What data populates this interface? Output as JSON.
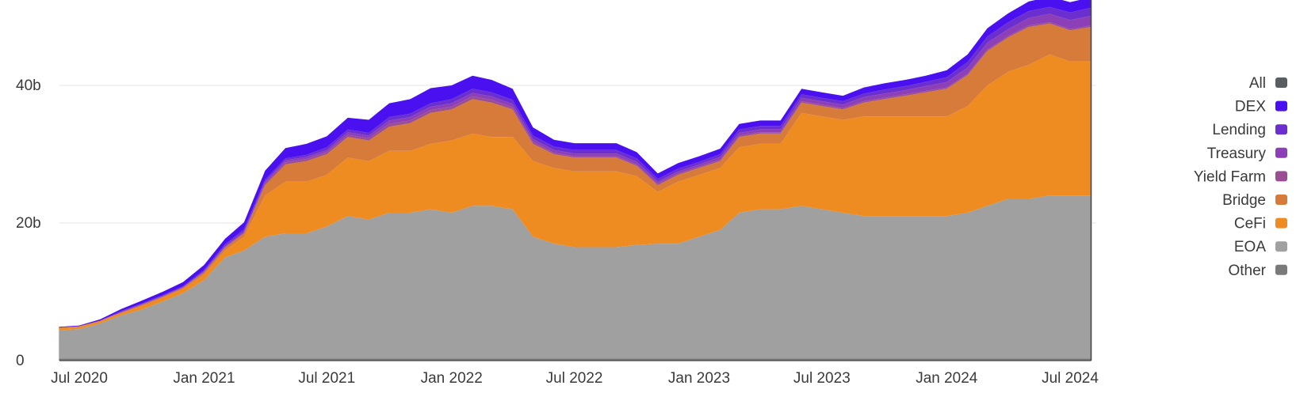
{
  "chart_data": {
    "type": "area",
    "stacked": true,
    "title": "",
    "xlabel": "",
    "ylabel": "",
    "x_ticks": [
      "Jul 2020",
      "Jan 2021",
      "Jul 2021",
      "Jan 2022",
      "Jul 2022",
      "Jan 2023",
      "Jul 2023",
      "Jan 2024",
      "Jul 2024"
    ],
    "y_ticks": [
      "0",
      "20b",
      "40b"
    ],
    "y_tick_values": [
      0,
      20,
      40
    ],
    "ylim": [
      0,
      52
    ],
    "xlim": [
      "2020-06-01",
      "2024-08-01"
    ],
    "grid": "horizontal",
    "legend_position": "right",
    "x": [
      "2020-06-01",
      "2020-07-01",
      "2020-08-01",
      "2020-09-01",
      "2020-10-01",
      "2020-11-01",
      "2020-12-01",
      "2021-01-01",
      "2021-02-01",
      "2021-03-01",
      "2021-04-01",
      "2021-05-01",
      "2021-06-01",
      "2021-07-01",
      "2021-08-01",
      "2021-09-01",
      "2021-10-01",
      "2021-11-01",
      "2021-12-01",
      "2022-01-01",
      "2022-02-01",
      "2022-03-01",
      "2022-04-01",
      "2022-05-01",
      "2022-06-01",
      "2022-07-01",
      "2022-08-01",
      "2022-09-01",
      "2022-10-01",
      "2022-11-01",
      "2022-12-01",
      "2023-01-01",
      "2023-02-01",
      "2023-03-01",
      "2023-04-01",
      "2023-05-01",
      "2023-06-01",
      "2023-07-01",
      "2023-08-01",
      "2023-09-01",
      "2023-10-01",
      "2023-11-01",
      "2023-12-01",
      "2024-01-01",
      "2024-02-01",
      "2024-03-01",
      "2024-04-01",
      "2024-05-01",
      "2024-06-01",
      "2024-07-01",
      "2024-08-01"
    ],
    "series": [
      {
        "name": "Other",
        "color": "#7a7a7a",
        "values": [
          0.3,
          0.3,
          0.3,
          0.3,
          0.3,
          0.3,
          0.3,
          0.3,
          0.3,
          0.3,
          0.3,
          0.3,
          0.3,
          0.3,
          0.3,
          0.3,
          0.3,
          0.3,
          0.3,
          0.3,
          0.3,
          0.3,
          0.3,
          0.3,
          0.3,
          0.3,
          0.3,
          0.3,
          0.3,
          0.3,
          0.3,
          0.3,
          0.3,
          0.3,
          0.3,
          0.3,
          0.3,
          0.3,
          0.3,
          0.3,
          0.3,
          0.3,
          0.3,
          0.3,
          0.3,
          0.3,
          0.3,
          0.3,
          0.3,
          0.3,
          0.3
        ]
      },
      {
        "name": "EOA",
        "color": "#a0a0a0",
        "values": [
          4.1,
          4.3,
          5.1,
          6.3,
          7.1,
          8.3,
          9.5,
          11.4,
          14.7,
          15.7,
          17.7,
          18.2,
          18.2,
          19.2,
          20.7,
          20.2,
          21.2,
          21.2,
          21.7,
          21.2,
          22.2,
          22.2,
          21.7,
          17.7,
          16.7,
          16.2,
          16.2,
          16.2,
          16.5,
          16.7,
          16.7,
          17.7,
          18.7,
          21.2,
          21.7,
          21.7,
          22.2,
          21.7,
          21.2,
          20.7,
          20.7,
          20.7,
          20.7,
          20.7,
          21.2,
          22.2,
          23.2,
          23.2,
          23.7,
          23.7,
          23.7
        ]
      },
      {
        "name": "CeFi",
        "color": "#ee8c22",
        "values": [
          0.3,
          0.3,
          0.3,
          0.3,
          0.5,
          0.5,
          0.6,
          0.8,
          1.0,
          2.0,
          6.0,
          7.5,
          7.5,
          7.5,
          8.5,
          8.5,
          9.0,
          9.0,
          9.5,
          10.5,
          10.5,
          10.0,
          10.5,
          11.0,
          11.0,
          11.0,
          11.0,
          11.0,
          10.0,
          7.5,
          9.0,
          9.0,
          9.0,
          9.5,
          9.5,
          9.5,
          13.5,
          13.5,
          13.5,
          14.5,
          14.5,
          14.5,
          14.5,
          14.5,
          15.5,
          17.5,
          18.5,
          19.5,
          20.5,
          19.5,
          19.5
        ]
      },
      {
        "name": "Bridge",
        "color": "#d67b3a",
        "values": [
          0.1,
          0.1,
          0.1,
          0.1,
          0.2,
          0.2,
          0.2,
          0.3,
          0.4,
          0.5,
          1.5,
          2.5,
          3.0,
          3.0,
          3.0,
          3.0,
          3.5,
          4.0,
          4.5,
          4.5,
          5.0,
          5.0,
          4.0,
          2.5,
          2.0,
          2.0,
          2.0,
          2.0,
          1.5,
          1.0,
          1.0,
          1.0,
          1.0,
          1.5,
          1.5,
          1.5,
          1.5,
          1.5,
          1.5,
          2.0,
          2.5,
          3.0,
          3.5,
          4.0,
          4.5,
          5.0,
          5.0,
          5.5,
          4.5,
          4.5,
          5.0
        ]
      },
      {
        "name": "Yield Farm",
        "color": "#9b4e94",
        "values": [
          0.0,
          0.0,
          0.0,
          0.0,
          0.0,
          0.0,
          0.0,
          0.1,
          0.1,
          0.1,
          0.2,
          0.3,
          0.3,
          0.3,
          0.3,
          0.3,
          0.4,
          0.4,
          0.4,
          0.4,
          0.4,
          0.4,
          0.3,
          0.3,
          0.2,
          0.2,
          0.2,
          0.2,
          0.2,
          0.2,
          0.2,
          0.2,
          0.2,
          0.2,
          0.2,
          0.2,
          0.2,
          0.2,
          0.2,
          0.2,
          0.2,
          0.2,
          0.2,
          0.2,
          0.2,
          0.2,
          0.2,
          0.2,
          0.2,
          0.2,
          0.2
        ]
      },
      {
        "name": "Treasury",
        "color": "#8d3fb8",
        "values": [
          0.0,
          0.0,
          0.0,
          0.1,
          0.1,
          0.1,
          0.1,
          0.1,
          0.2,
          0.2,
          0.3,
          0.3,
          0.3,
          0.3,
          0.4,
          0.4,
          0.5,
          0.5,
          0.5,
          0.5,
          0.5,
          0.5,
          0.5,
          0.4,
          0.4,
          0.4,
          0.4,
          0.4,
          0.4,
          0.3,
          0.3,
          0.3,
          0.4,
          0.4,
          0.4,
          0.4,
          0.5,
          0.5,
          0.5,
          0.6,
          0.6,
          0.6,
          0.7,
          0.8,
          0.9,
          1.0,
          1.0,
          1.1,
          1.2,
          1.3,
          1.4
        ]
      },
      {
        "name": "Lending",
        "color": "#6b2fd0",
        "values": [
          0.0,
          0.0,
          0.0,
          0.1,
          0.1,
          0.1,
          0.1,
          0.2,
          0.2,
          0.3,
          0.3,
          0.3,
          0.3,
          0.4,
          0.4,
          0.4,
          0.5,
          0.5,
          0.5,
          0.6,
          0.6,
          0.6,
          0.6,
          0.5,
          0.5,
          0.5,
          0.5,
          0.5,
          0.5,
          0.4,
          0.4,
          0.4,
          0.4,
          0.5,
          0.5,
          0.5,
          0.5,
          0.5,
          0.5,
          0.5,
          0.6,
          0.6,
          0.6,
          0.7,
          0.8,
          0.9,
          1.0,
          1.0,
          1.0,
          1.1,
          1.2
        ]
      },
      {
        "name": "DEX",
        "color": "#4a10f0",
        "values": [
          0.1,
          0.1,
          0.2,
          0.3,
          0.4,
          0.5,
          0.6,
          0.7,
          0.8,
          1.0,
          1.3,
          1.5,
          1.6,
          1.6,
          1.7,
          1.9,
          2.0,
          2.1,
          2.2,
          2.0,
          1.9,
          1.8,
          1.6,
          1.2,
          1.0,
          1.0,
          1.0,
          1.0,
          0.9,
          0.8,
          0.8,
          0.8,
          0.8,
          0.8,
          0.8,
          0.8,
          0.8,
          0.8,
          0.8,
          0.9,
          0.9,
          0.9,
          0.9,
          1.0,
          1.1,
          1.2,
          1.3,
          1.4,
          1.5,
          1.5,
          1.5
        ]
      },
      {
        "name": "All",
        "color": "#5a5e60",
        "values": [
          0,
          0,
          0,
          0,
          0,
          0,
          0,
          0,
          0,
          0,
          0,
          0,
          0,
          0,
          0,
          0,
          0,
          0,
          0,
          0,
          0,
          0,
          0,
          0,
          0,
          0,
          0,
          0,
          0,
          0,
          0,
          0,
          0,
          0,
          0,
          0,
          0,
          0,
          0,
          0,
          0,
          0,
          0,
          0,
          0,
          0,
          0,
          0,
          0,
          0,
          0
        ]
      }
    ],
    "legend": [
      {
        "label": "All",
        "color": "#5a5e60"
      },
      {
        "label": "DEX",
        "color": "#4a10f0"
      },
      {
        "label": "Lending",
        "color": "#6b2fd0"
      },
      {
        "label": "Treasury",
        "color": "#8d3fb8"
      },
      {
        "label": "Yield Farm",
        "color": "#9b4e94"
      },
      {
        "label": "Bridge",
        "color": "#d67b3a"
      },
      {
        "label": "CeFi",
        "color": "#ee8c22"
      },
      {
        "label": "EOA",
        "color": "#a0a0a0"
      },
      {
        "label": "Other",
        "color": "#7a7a7a"
      }
    ]
  }
}
